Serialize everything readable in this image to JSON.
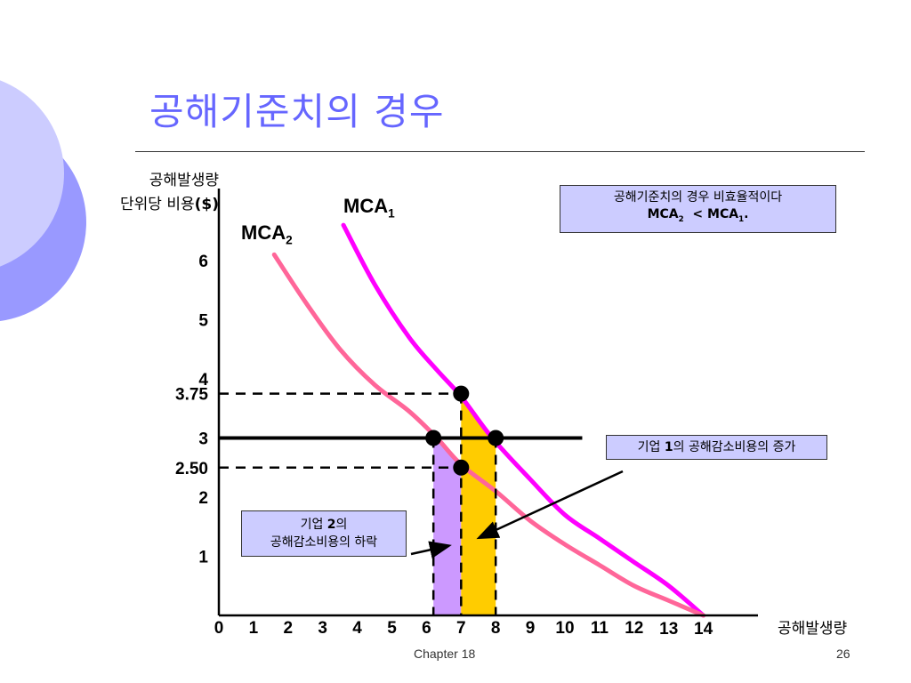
{
  "slide": {
    "title": "공해기준치의 경우",
    "footer_chapter": "Chapter 18",
    "footer_page": "26"
  },
  "axis": {
    "y_label_line1": "공해발생량",
    "y_label_line2_kr": "단위당 비용",
    "y_label_line2_unit": "($)",
    "x_label": "공해발생량"
  },
  "curve_labels": {
    "mca1_main": "MCA",
    "mca1_sub": "1",
    "mca2_main": "MCA",
    "mca2_sub": "2"
  },
  "boxes": {
    "top_line1": "공해기준치의 경우 비효율적이다",
    "top_mca2": "MCA",
    "top_mca2_sub": "2",
    "top_lt": "< MCA",
    "top_mca1_sub": "1",
    "top_period": ".",
    "right_kr1": "기업 ",
    "right_num": "1",
    "right_kr2": "의 공해감소비용의 증가",
    "left_kr1": "기업 ",
    "left_num": "2",
    "left_kr2": "의",
    "left_line2": "공해감소비용의 하락"
  },
  "chart_data": {
    "type": "line",
    "xlabel": "공해발생량",
    "ylabel": "공해발생량 단위당 비용($)",
    "xlim": [
      0,
      14
    ],
    "ylim": [
      0,
      7
    ],
    "x_ticks": [
      {
        "value": 0,
        "label": "0"
      },
      {
        "value": 1,
        "label": "1"
      },
      {
        "value": 2,
        "label": "2"
      },
      {
        "value": 3,
        "label": "3"
      },
      {
        "value": 4,
        "label": "4"
      },
      {
        "value": 5,
        "label": "5"
      },
      {
        "value": 6,
        "label": "6"
      },
      {
        "value": 7,
        "label": "7"
      },
      {
        "value": 8,
        "label": "8"
      },
      {
        "value": 9,
        "label": "9"
      },
      {
        "value": 10,
        "label": "10"
      },
      {
        "value": 11,
        "label": "11"
      },
      {
        "value": 12,
        "label": "12"
      },
      {
        "value": 13,
        "label": "13"
      },
      {
        "value": 14,
        "label": "14"
      }
    ],
    "y_ticks": [
      {
        "value": 1,
        "label": "1"
      },
      {
        "value": 2,
        "label": "2"
      },
      {
        "value": 2.5,
        "label": "2.50"
      },
      {
        "value": 3,
        "label": "3"
      },
      {
        "value": 3.75,
        "label": "3.75"
      },
      {
        "value": 4,
        "label": "4"
      },
      {
        "value": 5,
        "label": "5"
      },
      {
        "value": 6,
        "label": "6"
      }
    ],
    "series": [
      {
        "name": "MCA1",
        "color": "#ff00ff",
        "points": [
          [
            3.6,
            6.6
          ],
          [
            4.5,
            5.6
          ],
          [
            5.5,
            4.7
          ],
          [
            6.3,
            4.15
          ],
          [
            7.0,
            3.7
          ],
          [
            7.9,
            3.0
          ],
          [
            9.0,
            2.3
          ],
          [
            10.0,
            1.7
          ],
          [
            11.0,
            1.3
          ],
          [
            12.0,
            0.9
          ],
          [
            13.0,
            0.5
          ],
          [
            14.0,
            0.0
          ]
        ]
      },
      {
        "name": "MCA2",
        "color": "#ff6699",
        "points": [
          [
            1.6,
            6.1
          ],
          [
            2.5,
            5.3
          ],
          [
            3.5,
            4.5
          ],
          [
            4.5,
            3.9
          ],
          [
            5.5,
            3.45
          ],
          [
            6.3,
            3.0
          ],
          [
            7.0,
            2.55
          ],
          [
            8.0,
            2.1
          ],
          [
            9.0,
            1.6
          ],
          [
            10.0,
            1.2
          ],
          [
            11.0,
            0.85
          ],
          [
            12.0,
            0.5
          ],
          [
            13.0,
            0.25
          ],
          [
            14.0,
            0.0
          ]
        ]
      }
    ],
    "standard_line": {
      "y": 3,
      "x_start": 0,
      "x_end": 10.5,
      "color": "#000000"
    },
    "dashed_levels": [
      {
        "y": 3.75,
        "x_end": 7.0
      },
      {
        "y": 2.5,
        "x_end": 7.0
      }
    ],
    "dashed_verticals": [
      6.2,
      7.0,
      8.0
    ],
    "points": [
      {
        "x": 7.0,
        "y": 3.75
      },
      {
        "x": 6.2,
        "y": 3.0
      },
      {
        "x": 8.0,
        "y": 3.0
      },
      {
        "x": 7.0,
        "y": 2.5
      }
    ],
    "shaded_areas": [
      {
        "name": "firm2-decrease",
        "color": "#cc99ff",
        "x_range": [
          6.2,
          7.0
        ]
      },
      {
        "name": "firm1-increase",
        "color": "#ffcc00",
        "x_range": [
          7.0,
          8.0
        ]
      }
    ]
  }
}
